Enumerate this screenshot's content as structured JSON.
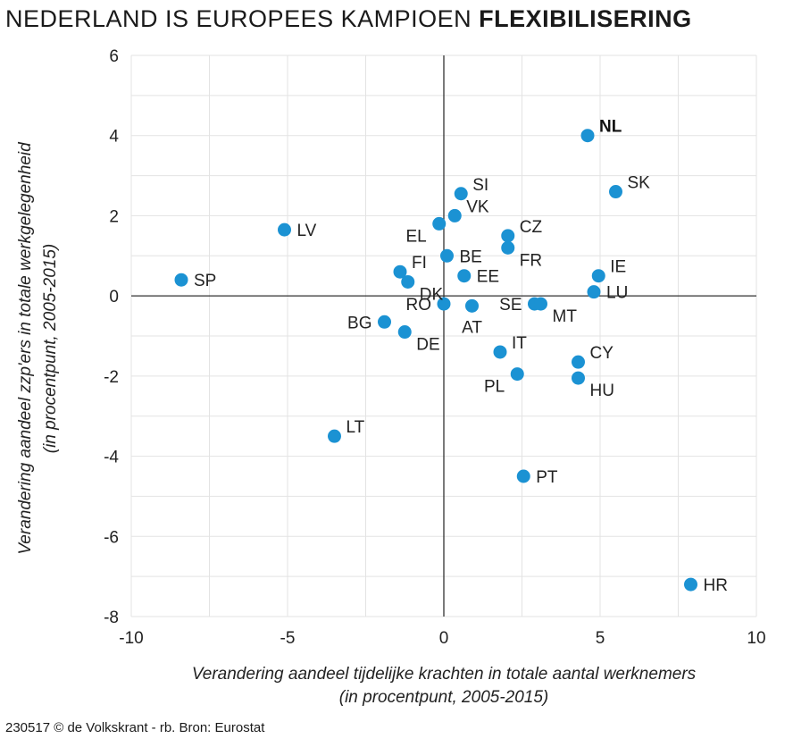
{
  "title": {
    "prefix": "NEDERLAND IS EUROPEES KAMPIOEN",
    "bold": "FLEXIBILISERING"
  },
  "source": "230517 © de Volkskrant - rb. Bron: Eurostat",
  "colors": {
    "point": "#1b92d3",
    "axis": "#333333",
    "grid": "#e3e3e3"
  },
  "chart_data": {
    "type": "scatter",
    "title": "NEDERLAND IS EUROPEES KAMPIOEN FLEXIBILISERING",
    "xlabel_line1": "Verandering aandeel tijdelijke krachten in totale aantal werknemers",
    "xlabel_line2": "(in procentpunt, 2005-2015)",
    "ylabel_line1": "Verandering aandeel zzp'ers in totale werkgelegenheid",
    "ylabel_line2": "(in procentpunt, 2005-2015)",
    "xlim": [
      -10,
      10
    ],
    "ylim": [
      -8,
      6
    ],
    "xticks": [
      -10,
      -5,
      0,
      5,
      10
    ],
    "yticks": [
      6,
      4,
      2,
      0,
      -2,
      -4,
      -6,
      -8
    ],
    "grid": true,
    "points": [
      {
        "label": "NL",
        "x": 4.6,
        "y": 4.0,
        "highlight": true,
        "label_pos": "right-up"
      },
      {
        "label": "SK",
        "x": 5.5,
        "y": 2.6,
        "label_pos": "right-up"
      },
      {
        "label": "SI",
        "x": 0.55,
        "y": 2.55,
        "label_pos": "right-up"
      },
      {
        "label": "VK",
        "x": 0.35,
        "y": 2.0,
        "label_pos": "right-up"
      },
      {
        "label": "EL",
        "x": -0.15,
        "y": 1.8,
        "label_pos": "left-down"
      },
      {
        "label": "CZ",
        "x": 2.05,
        "y": 1.5,
        "label_pos": "right-up"
      },
      {
        "label": "FR",
        "x": 2.05,
        "y": 1.2,
        "label_pos": "right-down"
      },
      {
        "label": "LV",
        "x": -5.1,
        "y": 1.65,
        "label_pos": "right"
      },
      {
        "label": "BE",
        "x": 0.1,
        "y": 1.0,
        "label_pos": "right"
      },
      {
        "label": "FI",
        "x": -1.4,
        "y": 0.6,
        "label_pos": "right-up"
      },
      {
        "label": "EE",
        "x": 0.65,
        "y": 0.5,
        "label_pos": "right"
      },
      {
        "label": "DK",
        "x": -1.15,
        "y": 0.35,
        "label_pos": "right-down"
      },
      {
        "label": "IE",
        "x": 4.95,
        "y": 0.5,
        "label_pos": "right-up"
      },
      {
        "label": "SP",
        "x": -8.4,
        "y": 0.4,
        "label_pos": "right"
      },
      {
        "label": "LU",
        "x": 4.8,
        "y": 0.1,
        "label_pos": "right"
      },
      {
        "label": "RO",
        "x": 0.0,
        "y": -0.2,
        "label_pos": "left"
      },
      {
        "label": "AT",
        "x": 0.9,
        "y": -0.25,
        "label_pos": "below"
      },
      {
        "label": "SE",
        "x": 2.9,
        "y": -0.2,
        "label_pos": "left"
      },
      {
        "label": "MT",
        "x": 3.1,
        "y": -0.2,
        "label_pos": "right-down"
      },
      {
        "label": "BG",
        "x": -1.9,
        "y": -0.65,
        "label_pos": "left"
      },
      {
        "label": "DE",
        "x": -1.25,
        "y": -0.9,
        "label_pos": "right-down"
      },
      {
        "label": "IT",
        "x": 1.8,
        "y": -1.4,
        "label_pos": "right-up"
      },
      {
        "label": "CY",
        "x": 4.3,
        "y": -1.65,
        "label_pos": "right-up"
      },
      {
        "label": "PL",
        "x": 2.35,
        "y": -1.95,
        "label_pos": "left-down"
      },
      {
        "label": "HU",
        "x": 4.3,
        "y": -2.05,
        "label_pos": "right-down"
      },
      {
        "label": "LT",
        "x": -3.5,
        "y": -3.5,
        "label_pos": "right-up"
      },
      {
        "label": "PT",
        "x": 2.55,
        "y": -4.5,
        "label_pos": "right"
      },
      {
        "label": "HR",
        "x": 7.9,
        "y": -7.2,
        "label_pos": "right"
      }
    ]
  }
}
